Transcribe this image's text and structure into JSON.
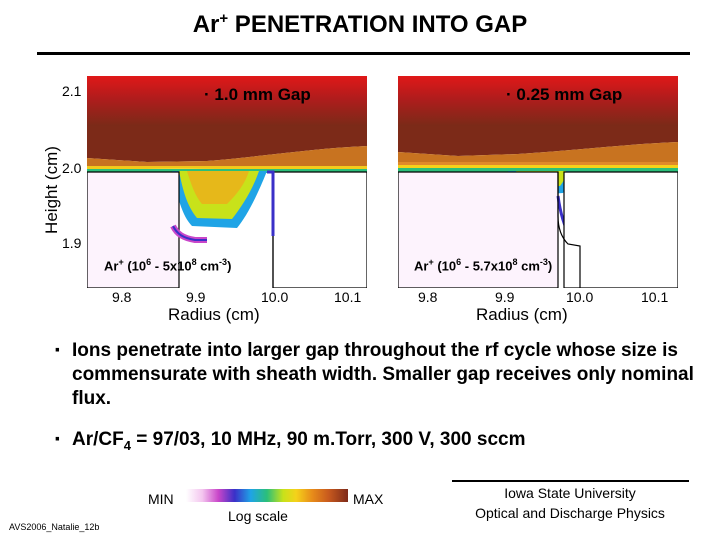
{
  "title": {
    "main": "Ar",
    "sup": "+",
    "rest": " PENETRATION INTO GAP"
  },
  "y_axis": {
    "label": "Height (cm)",
    "ticks": [
      "2.1",
      "2.0",
      "1.9"
    ]
  },
  "x_axis": {
    "label": "Radius (cm)",
    "ticks": [
      "9.8",
      "9.9",
      "10.0",
      "10.1"
    ]
  },
  "panels": [
    {
      "caption": "1.0 mm Gap",
      "ion_prefix": "Ar",
      "ion_sup1": "+",
      "ion_mid": " (10",
      "ion_sup2": "6",
      "ion_mid2": " - 5x10",
      "ion_sup3": "8",
      "ion_mid3": " cm",
      "ion_sup4": "-3",
      "ion_end": ")"
    },
    {
      "caption": "0.25 mm Gap",
      "ion_prefix": "Ar",
      "ion_sup1": "+",
      "ion_mid": " (10",
      "ion_sup2": "6",
      "ion_mid2": " - 5.7x10",
      "ion_sup3": "8",
      "ion_mid3": "  cm",
      "ion_sup4": "-3",
      "ion_end": ")"
    }
  ],
  "bullets": [
    {
      "symbol": "·",
      "text": "Ions penetrate into larger gap throughout the rf cycle whose size is commensurate with sheath width. Smaller gap receives only nominal flux."
    },
    {
      "symbol": "·",
      "text_pre": "Ar/CF",
      "text_sub": "4",
      "text_post": " = 97/03, 10 MHz, 90 m.Torr, 300 V, 300 sccm"
    }
  ],
  "colorbar": {
    "min": "MIN",
    "max": "MAX",
    "scale": "Log scale"
  },
  "footer": {
    "code": "AVS2006_Natalie_12b",
    "line1": "Iowa State University",
    "line2": "Optical and Discharge Physics"
  }
}
